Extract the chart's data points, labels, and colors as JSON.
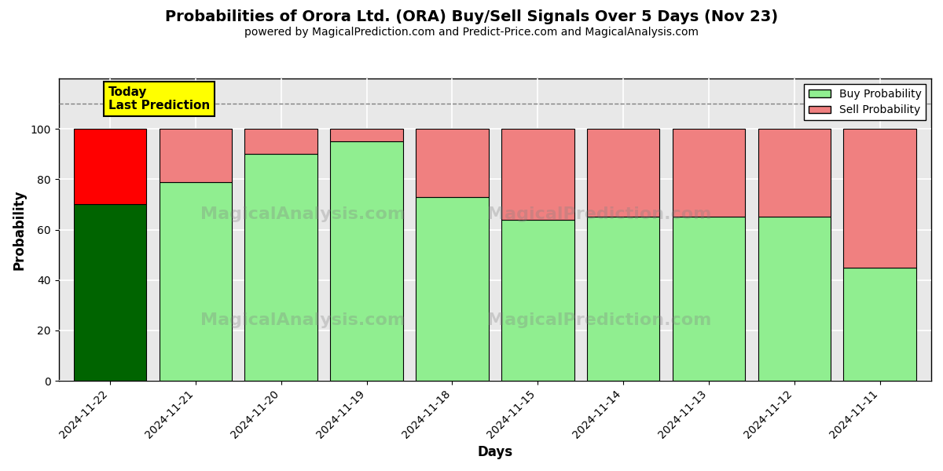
{
  "title": "Probabilities of Orora Ltd. (ORA) Buy/Sell Signals Over 5 Days (Nov 23)",
  "subtitle": "powered by MagicalPrediction.com and Predict-Price.com and MagicalAnalysis.com",
  "xlabel": "Days",
  "ylabel": "Probability",
  "dates": [
    "2024-11-22",
    "2024-11-21",
    "2024-11-20",
    "2024-11-19",
    "2024-11-18",
    "2024-11-15",
    "2024-11-14",
    "2024-11-13",
    "2024-11-12",
    "2024-11-11"
  ],
  "buy_values": [
    70,
    79,
    90,
    95,
    73,
    64,
    65,
    65,
    65,
    45
  ],
  "sell_values": [
    30,
    21,
    10,
    5,
    27,
    36,
    35,
    35,
    35,
    55
  ],
  "buy_color_today": "#006400",
  "sell_color_today": "#FF0000",
  "buy_color_normal": "#90EE90",
  "sell_color_normal": "#F08080",
  "today_label": "Today\nLast Prediction",
  "today_label_bg": "#FFFF00",
  "legend_buy_label": "Buy Probability",
  "legend_sell_label": "Sell Probability",
  "ylim": [
    0,
    120
  ],
  "dashed_line_y": 110,
  "bar_width": 0.85,
  "edgecolor": "black",
  "grid_color": "white",
  "bg_color": "#e8e8e8"
}
